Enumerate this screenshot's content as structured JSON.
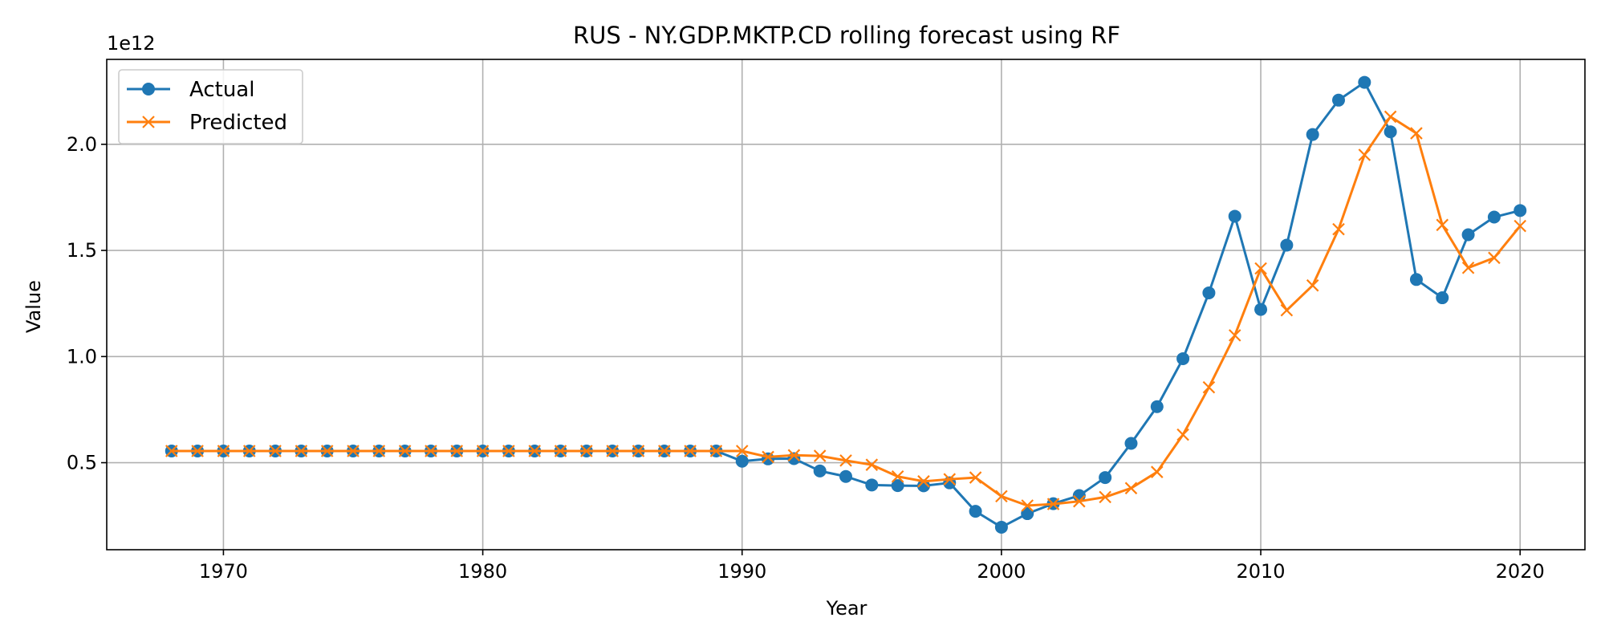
{
  "chart_data": {
    "type": "line",
    "title": "RUS - NY.GDP.MKTP.CD rolling forecast using RF",
    "xlabel": "Year",
    "ylabel": "Value",
    "y_offset_label": "1e12",
    "xlim": [
      1965.5,
      2022.5
    ],
    "ylim": [
      0.09,
      2.4
    ],
    "x_ticks": [
      1970,
      1980,
      1990,
      2000,
      2010,
      2020
    ],
    "x_tick_labels": [
      "1970",
      "1980",
      "1990",
      "2000",
      "2010",
      "2020"
    ],
    "y_ticks": [
      0.5,
      1.0,
      1.5,
      2.0
    ],
    "y_tick_labels": [
      "0.5",
      "1.0",
      "1.5",
      "2.0"
    ],
    "grid": true,
    "legend_position": "top-left",
    "x": [
      1968,
      1969,
      1970,
      1971,
      1972,
      1973,
      1974,
      1975,
      1976,
      1977,
      1978,
      1979,
      1980,
      1981,
      1982,
      1983,
      1984,
      1985,
      1986,
      1987,
      1988,
      1989,
      1990,
      1991,
      1992,
      1993,
      1994,
      1995,
      1996,
      1997,
      1998,
      1999,
      2000,
      2001,
      2002,
      2003,
      2004,
      2005,
      2006,
      2007,
      2008,
      2009,
      2010,
      2011,
      2012,
      2013,
      2014,
      2015,
      2016,
      2017,
      2018,
      2019,
      2020
    ],
    "series": [
      {
        "name": "Actual",
        "color": "#1f77b4",
        "marker": "circle",
        "values": [
          0.555,
          0.555,
          0.555,
          0.555,
          0.555,
          0.555,
          0.555,
          0.555,
          0.555,
          0.555,
          0.555,
          0.555,
          0.555,
          0.555,
          0.555,
          0.555,
          0.555,
          0.555,
          0.555,
          0.555,
          0.555,
          0.555,
          0.507,
          0.518,
          0.519,
          0.461,
          0.435,
          0.395,
          0.392,
          0.391,
          0.405,
          0.271,
          0.196,
          0.26,
          0.307,
          0.345,
          0.43,
          0.591,
          0.764,
          0.99,
          1.3,
          1.661,
          1.222,
          1.525,
          2.046,
          2.208,
          2.292,
          2.059,
          1.363,
          1.277,
          1.574,
          1.657,
          1.688
        ]
      },
      {
        "name": "Predicted",
        "color": "#ff7f0e",
        "marker": "x",
        "values": [
          0.555,
          0.555,
          0.555,
          0.555,
          0.555,
          0.555,
          0.555,
          0.555,
          0.555,
          0.555,
          0.555,
          0.555,
          0.555,
          0.555,
          0.555,
          0.555,
          0.555,
          0.555,
          0.555,
          0.555,
          0.555,
          0.555,
          0.555,
          0.527,
          0.535,
          0.532,
          0.51,
          0.49,
          0.435,
          0.412,
          0.422,
          0.43,
          0.342,
          0.298,
          0.305,
          0.318,
          0.338,
          0.38,
          0.456,
          0.632,
          0.855,
          1.1,
          1.415,
          1.218,
          1.335,
          1.6,
          1.95,
          2.13,
          2.052,
          1.62,
          1.418,
          1.465,
          1.615
        ]
      }
    ]
  }
}
